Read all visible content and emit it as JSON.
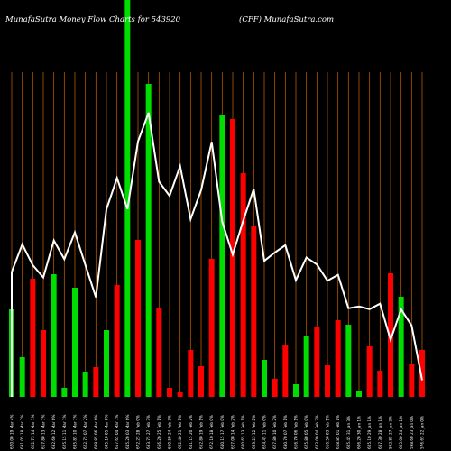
{
  "chart_data": {
    "type": "bar",
    "title_left": "MunafaSutra  Money Flow  Charts for 543920",
    "title_right": "(CFF) MunafaSutra.com",
    "categories": [
      "620.00 19 Mar 4%",
      "631.05 18 Mar 2%",
      "622.75 14 Mar 1%",
      "617.80 13 Mar 1%",
      "632.60 12 Mar 0%",
      "625.15 11 Mar 1%",
      "635.85 10 Mar 1%",
      "622.75 07 Mar 2%",
      "609.85 06 Mar 0%",
      "645.10 05 Mar 0%",
      "657.65 04 Mar 1%",
      "645.20 03 Mar 0%",
      "672.25 28 Feb 0%",
      "683.75 27 Feb 3%",
      "656.20 25 Feb 1%",
      "650.50 24 Feb 3%",
      "662.40 21 Feb 1%",
      "641.15 20 Feb 2%",
      "652.80 19 Feb 1%",
      "672.10 18 Feb 0%",
      "640.15 17 Feb 0%",
      "627.00 14 Feb 2%",
      "640.65 13 Feb 1%",
      "653.25 12 Feb 2%",
      "624.45 11 Feb 0%",
      "627.80 10 Feb 2%",
      "630.70 07 Feb 1%",
      "616.70 06 Feb 1%",
      "625.80 05 Feb 0%",
      "623.00 04 Feb 2%",
      "616.50 03 Feb 1%",
      "618.85 01 Feb 1%",
      "605.45 31 Jan 3%",
      "606.20 30 Jan 1%",
      "605.10 29 Jan 1%",
      "607.30 28 Jan 1%",
      "592.85 27 Jan 3%",
      "605.00 24 Jan 1%",
      "598.60 23 Jan 0%",
      "576.65 22 Jan 0%"
    ],
    "bars": [
      {
        "value": 97,
        "color": "#00dd00"
      },
      {
        "value": 44,
        "color": "#00dd00"
      },
      {
        "value": 131,
        "color": "#ff0000"
      },
      {
        "value": 74,
        "color": "#ff0000"
      },
      {
        "value": 136,
        "color": "#00dd00"
      },
      {
        "value": 10,
        "color": "#00dd00"
      },
      {
        "value": 121,
        "color": "#00dd00"
      },
      {
        "value": 28,
        "color": "#00dd00"
      },
      {
        "value": 33,
        "color": "#ff0000"
      },
      {
        "value": 74,
        "color": "#00dd00"
      },
      {
        "value": 124,
        "color": "#ff0000"
      },
      {
        "value": 440,
        "color": "#00dd00"
      },
      {
        "value": 174,
        "color": "#ff0000"
      },
      {
        "value": 347,
        "color": "#00dd00"
      },
      {
        "value": 99,
        "color": "#ff0000"
      },
      {
        "value": 10,
        "color": "#ff0000"
      },
      {
        "value": 5,
        "color": "#ff0000"
      },
      {
        "value": 52,
        "color": "#ff0000"
      },
      {
        "value": 34,
        "color": "#ff0000"
      },
      {
        "value": 153,
        "color": "#ff0000"
      },
      {
        "value": 312,
        "color": "#00dd00"
      },
      {
        "value": 308,
        "color": "#ff0000"
      },
      {
        "value": 248,
        "color": "#ff0000"
      },
      {
        "value": 190,
        "color": "#ff0000"
      },
      {
        "value": 41,
        "color": "#00dd00"
      },
      {
        "value": 20,
        "color": "#ff0000"
      },
      {
        "value": 57,
        "color": "#ff0000"
      },
      {
        "value": 14,
        "color": "#00dd00"
      },
      {
        "value": 68,
        "color": "#00dd00"
      },
      {
        "value": 78,
        "color": "#ff0000"
      },
      {
        "value": 35,
        "color": "#ff0000"
      },
      {
        "value": 85,
        "color": "#ff0000"
      },
      {
        "value": 80,
        "color": "#00dd00"
      },
      {
        "value": 6,
        "color": "#00dd00"
      },
      {
        "value": 56,
        "color": "#ff0000"
      },
      {
        "value": 29,
        "color": "#ff0000"
      },
      {
        "value": 137,
        "color": "#ff0000"
      },
      {
        "value": 111,
        "color": "#00dd00"
      },
      {
        "value": 37,
        "color": "#ff0000"
      },
      {
        "value": 52,
        "color": "#ff0000"
      }
    ],
    "price_line": [
      620.0,
      631.05,
      622.75,
      617.8,
      632.6,
      625.15,
      635.85,
      622.75,
      609.85,
      645.1,
      657.65,
      645.2,
      672.25,
      683.75,
      656.2,
      650.5,
      662.4,
      641.15,
      652.8,
      672.1,
      640.15,
      627.0,
      640.65,
      653.25,
      624.45,
      627.8,
      630.7,
      616.7,
      625.8,
      623.0,
      616.5,
      618.85,
      605.45,
      606.2,
      605.1,
      607.3,
      592.85,
      605.0,
      598.6,
      576.65
    ],
    "line_color": "#ffffff",
    "grid_color": "#b35900",
    "value_max": 440,
    "price_range": [
      570,
      700
    ],
    "grid": true,
    "legend": "none"
  }
}
